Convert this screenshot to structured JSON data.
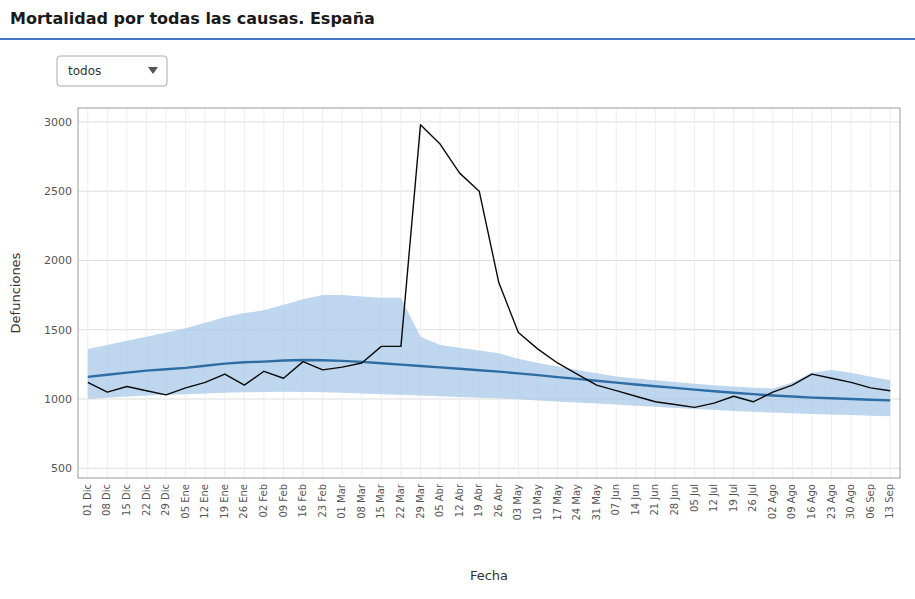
{
  "chart_data": {
    "type": "line",
    "title": "Mortalidad por todas las causas. España",
    "xlabel": "Fecha",
    "ylabel": "Defunciones",
    "annotations": [
      "todos"
    ],
    "categories": [
      "01 Dic",
      "08 Dic",
      "15 Dic",
      "22 Dic",
      "29 Dic",
      "05 Ene",
      "12 Ene",
      "19 Ene",
      "26 Ene",
      "02 Feb",
      "09 Feb",
      "16 Feb",
      "23 Feb",
      "01 Mar",
      "08 Mar",
      "15 Mar",
      "22 Mar",
      "29 Mar",
      "05 Abr",
      "12 Abr",
      "19 Abr",
      "26 Abr",
      "03 May",
      "10 May",
      "17 May",
      "24 May",
      "31 May",
      "07 Jun",
      "14 Jun",
      "21 Jun",
      "28 Jun",
      "05 Jul",
      "12 Jul",
      "19 Jul",
      "26 Jul",
      "02 Ago",
      "09 Ago",
      "16 Ago",
      "23 Ago",
      "30 Ago",
      "06 Sep",
      "13 Sep"
    ],
    "series": [
      {
        "type": "band",
        "color": "#a8c8e8",
        "lower": [
          1000,
          1010,
          1018,
          1025,
          1030,
          1035,
          1040,
          1045,
          1048,
          1050,
          1052,
          1050,
          1048,
          1045,
          1040,
          1035,
          1030,
          1025,
          1020,
          1015,
          1010,
          1005,
          998,
          990,
          982,
          975,
          968,
          960,
          952,
          944,
          936,
          928,
          921,
          914,
          908,
          902,
          897,
          892,
          888,
          884,
          880,
          876
        ],
        "upper": [
          1360,
          1390,
          1420,
          1450,
          1480,
          1510,
          1550,
          1590,
          1620,
          1640,
          1680,
          1720,
          1750,
          1750,
          1740,
          1730,
          1730,
          1450,
          1390,
          1370,
          1350,
          1330,
          1290,
          1260,
          1235,
          1210,
          1185,
          1162,
          1148,
          1135,
          1122,
          1110,
          1100,
          1090,
          1082,
          1075,
          1120,
          1190,
          1210,
          1190,
          1160,
          1135
        ]
      },
      {
        "type": "line",
        "color": "#2e6da4",
        "values": [
          1160,
          1175,
          1190,
          1205,
          1215,
          1225,
          1240,
          1255,
          1265,
          1270,
          1278,
          1282,
          1280,
          1275,
          1268,
          1258,
          1248,
          1238,
          1228,
          1218,
          1208,
          1198,
          1185,
          1172,
          1158,
          1145,
          1132,
          1118,
          1105,
          1092,
          1080,
          1068,
          1056,
          1045,
          1035,
          1025,
          1018,
          1010,
          1005,
          1000,
          995,
          990
        ]
      },
      {
        "type": "line",
        "color": "#0a0a0a",
        "values": [
          1120,
          1050,
          1090,
          1060,
          1030,
          1080,
          1120,
          1180,
          1100,
          1200,
          1150,
          1270,
          1210,
          1230,
          1260,
          1380,
          1380,
          2980,
          2840,
          2630,
          2500,
          1840,
          1480,
          1360,
          1260,
          1180,
          1100,
          1060,
          1020,
          980,
          960,
          940,
          970,
          1020,
          980,
          1050,
          1100,
          1180,
          1150,
          1120,
          1080,
          1060
        ]
      }
    ],
    "ylim": [
      430,
      3100
    ],
    "yticks": [
      500,
      1000,
      1500,
      2000,
      2500,
      3000
    ],
    "grid": true
  }
}
